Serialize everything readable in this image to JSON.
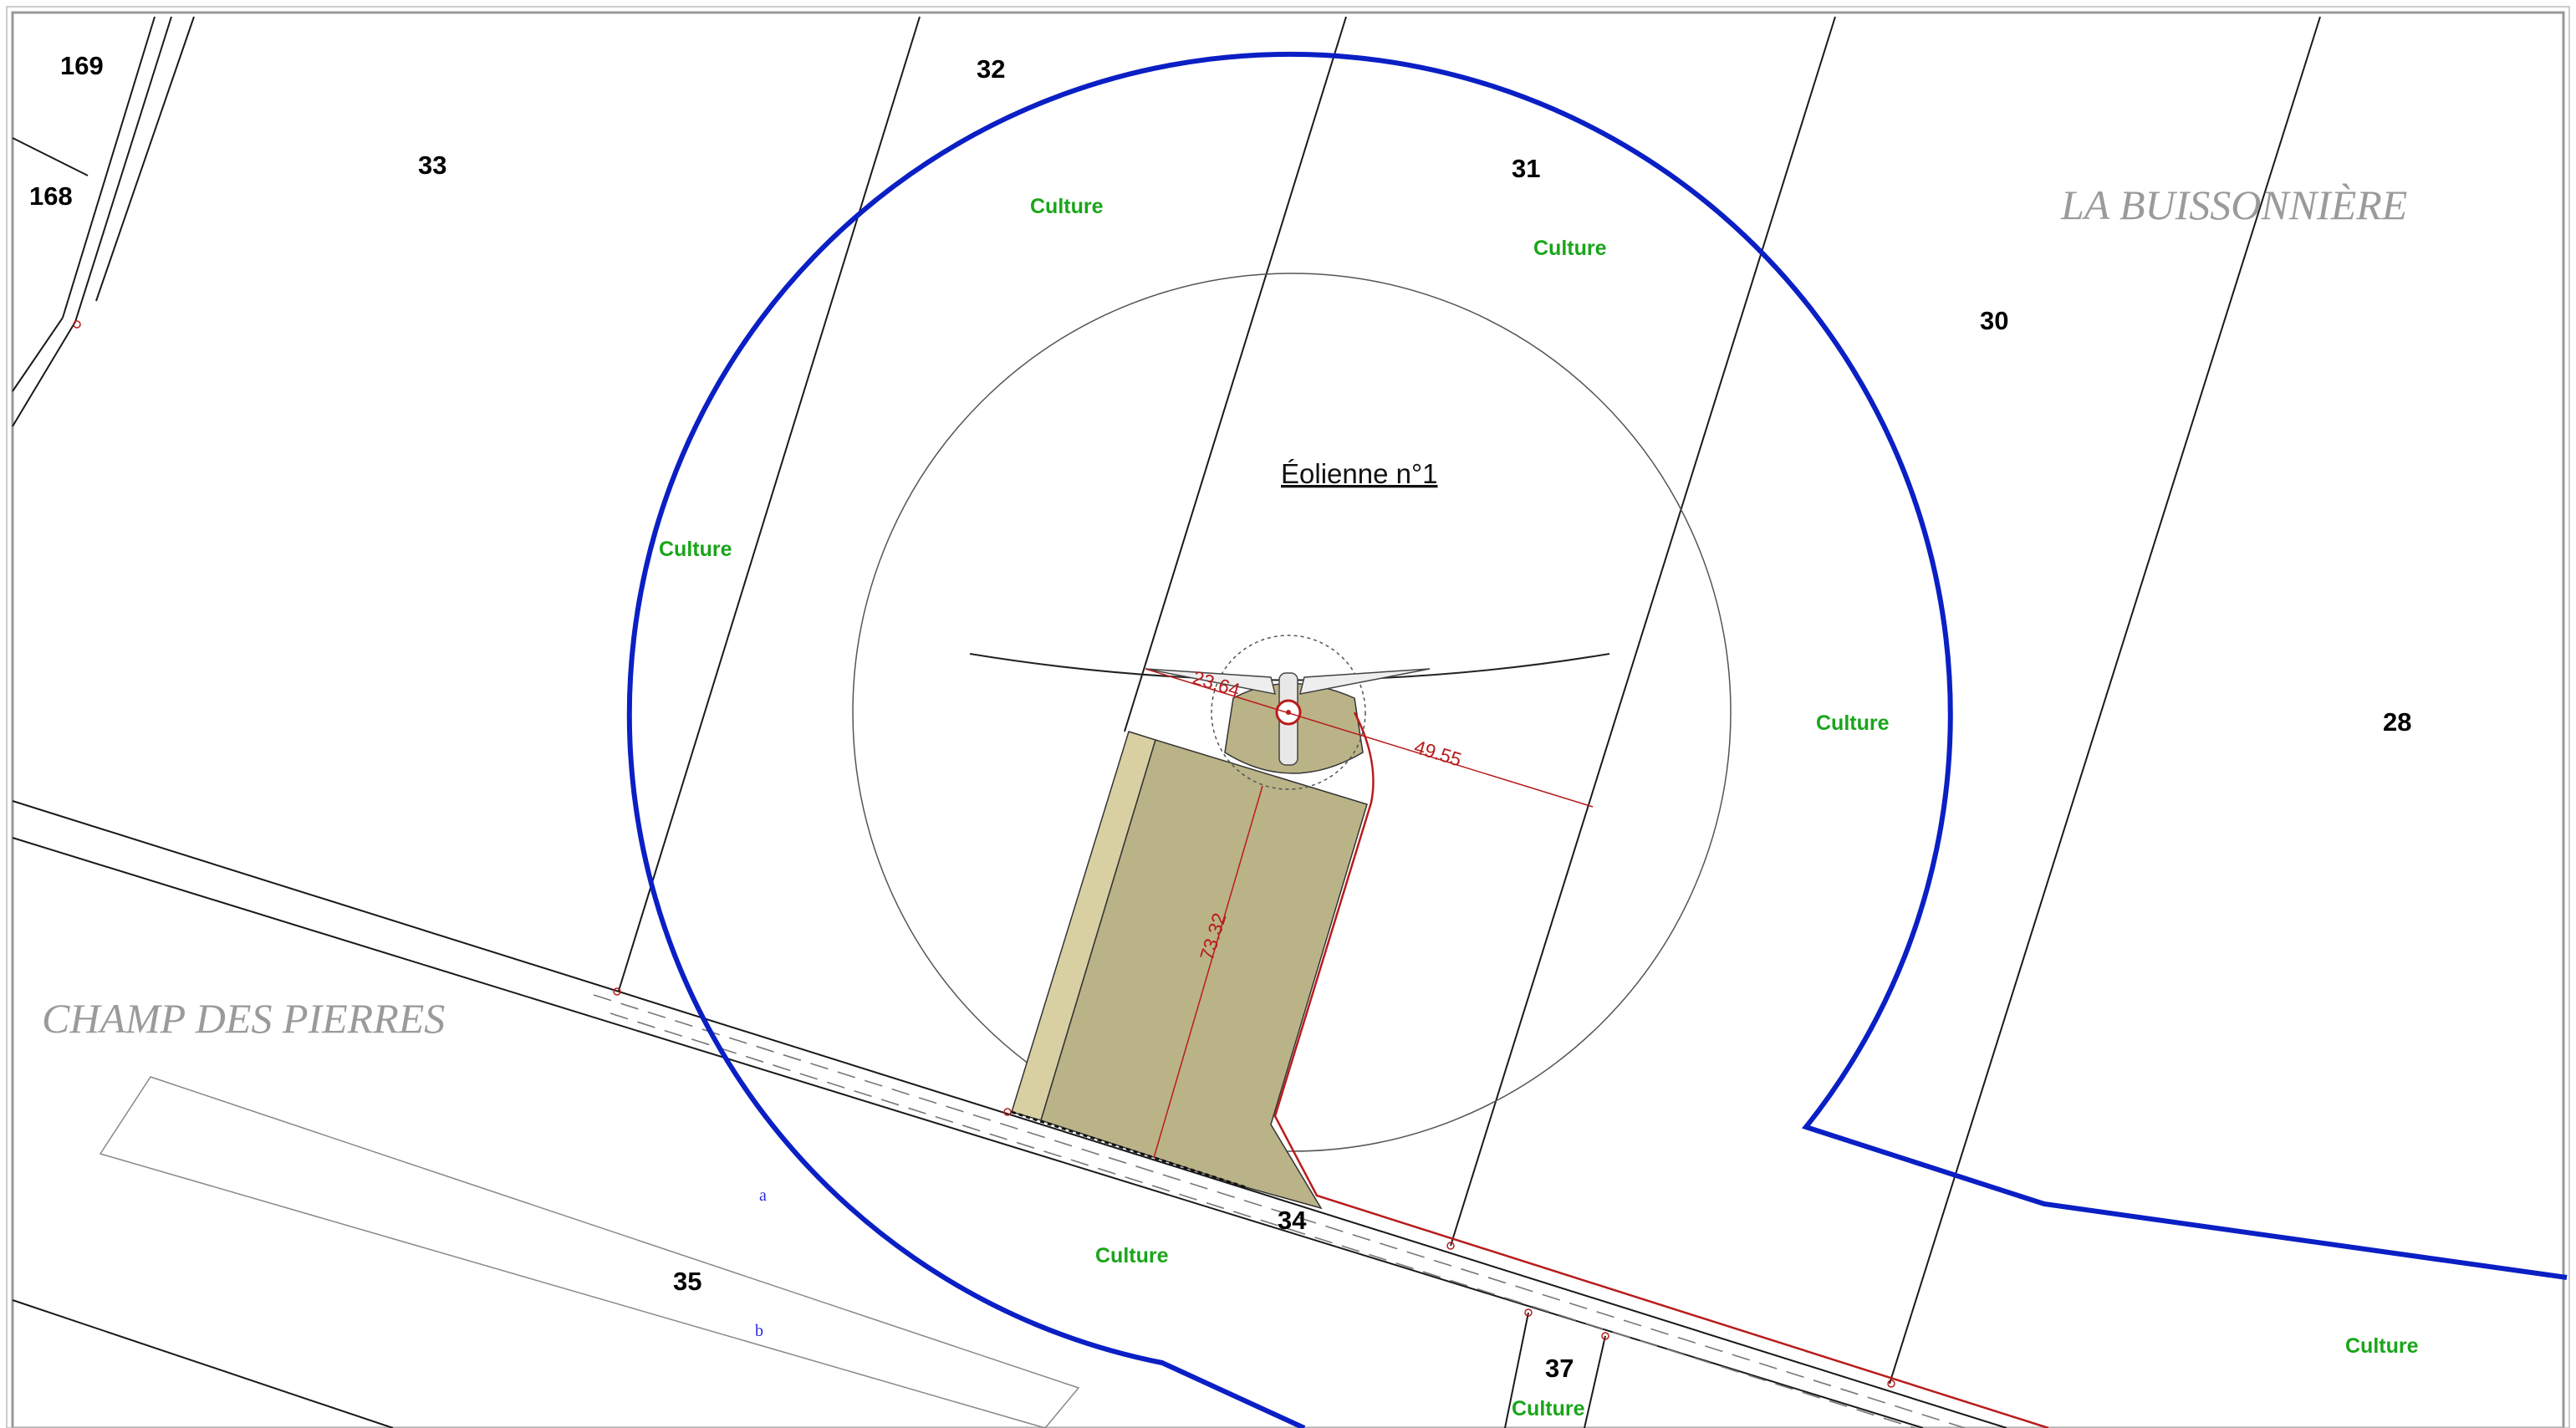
{
  "turbine": {
    "label": "Éolienne n°1"
  },
  "dimensions": {
    "d1": "23.64",
    "d2": "49.55",
    "d3": "73.32"
  },
  "parcels": {
    "p169": "169",
    "p168": "168",
    "p33": "33",
    "p32": "32",
    "p31": "31",
    "p30": "30",
    "p28": "28",
    "p34": "34",
    "p35": "35",
    "p37": "37"
  },
  "subparcels": {
    "a": "a",
    "b": "b"
  },
  "land_use": {
    "c1": "Culture",
    "c2": "Culture",
    "c3": "Culture",
    "c4": "Culture",
    "c5": "Culture",
    "c6": "Culture",
    "c7": "Culture"
  },
  "localities": {
    "west": "CHAMP DES PIERRES",
    "east": "LA BUISSONNIÈRE"
  },
  "colors": {
    "buffer_outline": "#0a1fc4",
    "platform_fill": "#bab387",
    "platform_side_fill": "#d8d0a3",
    "access_path": "#b81c1c",
    "culture_label": "#1aa51a",
    "locality_label": "#9a9a9a"
  }
}
